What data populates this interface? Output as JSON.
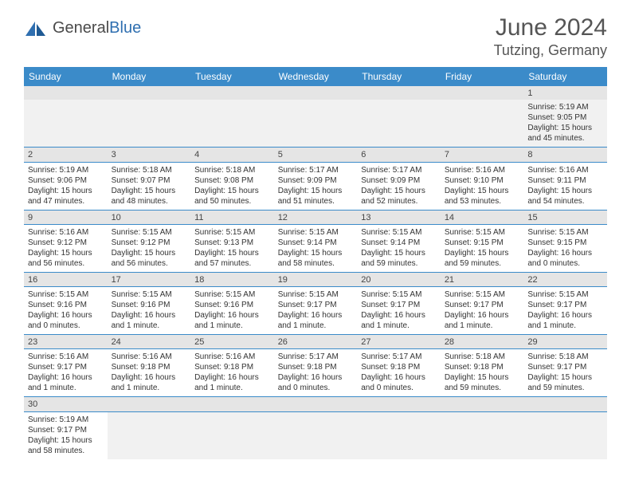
{
  "logo": {
    "text1": "General",
    "text2": "Blue"
  },
  "header": {
    "title": "June 2024",
    "location": "Tutzing, Germany"
  },
  "colors": {
    "header_bg": "#3b8bc9",
    "header_fg": "#ffffff",
    "daynum_bg": "#e5e5e5",
    "border": "#3b8bc9",
    "logo_gray": "#4a4a4a",
    "logo_blue": "#2f6fb0"
  },
  "weekdays": [
    "Sunday",
    "Monday",
    "Tuesday",
    "Wednesday",
    "Thursday",
    "Friday",
    "Saturday"
  ],
  "weeks": [
    {
      "nums": [
        "",
        "",
        "",
        "",
        "",
        "",
        "1"
      ],
      "cells": [
        null,
        null,
        null,
        null,
        null,
        null,
        {
          "sunrise": "Sunrise: 5:19 AM",
          "sunset": "Sunset: 9:05 PM",
          "daylight": "Daylight: 15 hours and 45 minutes."
        }
      ]
    },
    {
      "nums": [
        "2",
        "3",
        "4",
        "5",
        "6",
        "7",
        "8"
      ],
      "cells": [
        {
          "sunrise": "Sunrise: 5:19 AM",
          "sunset": "Sunset: 9:06 PM",
          "daylight": "Daylight: 15 hours and 47 minutes."
        },
        {
          "sunrise": "Sunrise: 5:18 AM",
          "sunset": "Sunset: 9:07 PM",
          "daylight": "Daylight: 15 hours and 48 minutes."
        },
        {
          "sunrise": "Sunrise: 5:18 AM",
          "sunset": "Sunset: 9:08 PM",
          "daylight": "Daylight: 15 hours and 50 minutes."
        },
        {
          "sunrise": "Sunrise: 5:17 AM",
          "sunset": "Sunset: 9:09 PM",
          "daylight": "Daylight: 15 hours and 51 minutes."
        },
        {
          "sunrise": "Sunrise: 5:17 AM",
          "sunset": "Sunset: 9:09 PM",
          "daylight": "Daylight: 15 hours and 52 minutes."
        },
        {
          "sunrise": "Sunrise: 5:16 AM",
          "sunset": "Sunset: 9:10 PM",
          "daylight": "Daylight: 15 hours and 53 minutes."
        },
        {
          "sunrise": "Sunrise: 5:16 AM",
          "sunset": "Sunset: 9:11 PM",
          "daylight": "Daylight: 15 hours and 54 minutes."
        }
      ]
    },
    {
      "nums": [
        "9",
        "10",
        "11",
        "12",
        "13",
        "14",
        "15"
      ],
      "cells": [
        {
          "sunrise": "Sunrise: 5:16 AM",
          "sunset": "Sunset: 9:12 PM",
          "daylight": "Daylight: 15 hours and 56 minutes."
        },
        {
          "sunrise": "Sunrise: 5:15 AM",
          "sunset": "Sunset: 9:12 PM",
          "daylight": "Daylight: 15 hours and 56 minutes."
        },
        {
          "sunrise": "Sunrise: 5:15 AM",
          "sunset": "Sunset: 9:13 PM",
          "daylight": "Daylight: 15 hours and 57 minutes."
        },
        {
          "sunrise": "Sunrise: 5:15 AM",
          "sunset": "Sunset: 9:14 PM",
          "daylight": "Daylight: 15 hours and 58 minutes."
        },
        {
          "sunrise": "Sunrise: 5:15 AM",
          "sunset": "Sunset: 9:14 PM",
          "daylight": "Daylight: 15 hours and 59 minutes."
        },
        {
          "sunrise": "Sunrise: 5:15 AM",
          "sunset": "Sunset: 9:15 PM",
          "daylight": "Daylight: 15 hours and 59 minutes."
        },
        {
          "sunrise": "Sunrise: 5:15 AM",
          "sunset": "Sunset: 9:15 PM",
          "daylight": "Daylight: 16 hours and 0 minutes."
        }
      ]
    },
    {
      "nums": [
        "16",
        "17",
        "18",
        "19",
        "20",
        "21",
        "22"
      ],
      "cells": [
        {
          "sunrise": "Sunrise: 5:15 AM",
          "sunset": "Sunset: 9:16 PM",
          "daylight": "Daylight: 16 hours and 0 minutes."
        },
        {
          "sunrise": "Sunrise: 5:15 AM",
          "sunset": "Sunset: 9:16 PM",
          "daylight": "Daylight: 16 hours and 1 minute."
        },
        {
          "sunrise": "Sunrise: 5:15 AM",
          "sunset": "Sunset: 9:16 PM",
          "daylight": "Daylight: 16 hours and 1 minute."
        },
        {
          "sunrise": "Sunrise: 5:15 AM",
          "sunset": "Sunset: 9:17 PM",
          "daylight": "Daylight: 16 hours and 1 minute."
        },
        {
          "sunrise": "Sunrise: 5:15 AM",
          "sunset": "Sunset: 9:17 PM",
          "daylight": "Daylight: 16 hours and 1 minute."
        },
        {
          "sunrise": "Sunrise: 5:15 AM",
          "sunset": "Sunset: 9:17 PM",
          "daylight": "Daylight: 16 hours and 1 minute."
        },
        {
          "sunrise": "Sunrise: 5:15 AM",
          "sunset": "Sunset: 9:17 PM",
          "daylight": "Daylight: 16 hours and 1 minute."
        }
      ]
    },
    {
      "nums": [
        "23",
        "24",
        "25",
        "26",
        "27",
        "28",
        "29"
      ],
      "cells": [
        {
          "sunrise": "Sunrise: 5:16 AM",
          "sunset": "Sunset: 9:17 PM",
          "daylight": "Daylight: 16 hours and 1 minute."
        },
        {
          "sunrise": "Sunrise: 5:16 AM",
          "sunset": "Sunset: 9:18 PM",
          "daylight": "Daylight: 16 hours and 1 minute."
        },
        {
          "sunrise": "Sunrise: 5:16 AM",
          "sunset": "Sunset: 9:18 PM",
          "daylight": "Daylight: 16 hours and 1 minute."
        },
        {
          "sunrise": "Sunrise: 5:17 AM",
          "sunset": "Sunset: 9:18 PM",
          "daylight": "Daylight: 16 hours and 0 minutes."
        },
        {
          "sunrise": "Sunrise: 5:17 AM",
          "sunset": "Sunset: 9:18 PM",
          "daylight": "Daylight: 16 hours and 0 minutes."
        },
        {
          "sunrise": "Sunrise: 5:18 AM",
          "sunset": "Sunset: 9:18 PM",
          "daylight": "Daylight: 15 hours and 59 minutes."
        },
        {
          "sunrise": "Sunrise: 5:18 AM",
          "sunset": "Sunset: 9:17 PM",
          "daylight": "Daylight: 15 hours and 59 minutes."
        }
      ]
    },
    {
      "nums": [
        "30",
        "",
        "",
        "",
        "",
        "",
        ""
      ],
      "cells": [
        {
          "sunrise": "Sunrise: 5:19 AM",
          "sunset": "Sunset: 9:17 PM",
          "daylight": "Daylight: 15 hours and 58 minutes."
        },
        null,
        null,
        null,
        null,
        null,
        null
      ]
    }
  ]
}
